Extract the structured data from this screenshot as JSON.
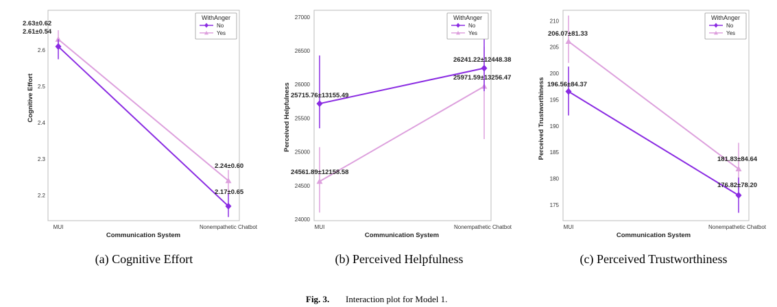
{
  "colors": {
    "no": "#8a2be2",
    "yes": "#dda0dd",
    "frame": "#bbbbbb"
  },
  "chart_data": [
    {
      "type": "line",
      "subcaption": "(a) Cognitive Effort",
      "xlabel": "Communication System",
      "ylabel": "Cognitive Effort",
      "categories": [
        "MUI",
        "Nonempathetic Chatbot"
      ],
      "ylim": [
        2.13,
        2.71
      ],
      "yticks": [
        2.2,
        2.3,
        2.4,
        2.5,
        2.6
      ],
      "ytick_labels": [
        "2.2",
        "2.3",
        "2.4",
        "2.5",
        "2.6"
      ],
      "legend": {
        "title": "WithAnger",
        "position": "top-right"
      },
      "series": [
        {
          "name": "No",
          "marker": "diamond",
          "values": [
            2.61,
            2.17
          ],
          "err_low": [
            2.575,
            2.14
          ],
          "err_high": [
            2.63,
            2.205
          ],
          "labels": [
            "2.61±0.54",
            "2.17±0.65"
          ]
        },
        {
          "name": "Yes",
          "marker": "triangle",
          "values": [
            2.63,
            2.24
          ],
          "err_low": [
            2.61,
            2.2
          ],
          "err_high": [
            2.655,
            2.27
          ],
          "labels": [
            "2.63±0.62",
            "2.24±0.60"
          ]
        }
      ]
    },
    {
      "type": "line",
      "subcaption": "(b) Perceived Helpfulness",
      "xlabel": "Communication System",
      "ylabel": "Perceived Helpfulness",
      "categories": [
        "MUI",
        "Nonempathetic Chatbot"
      ],
      "ylim": [
        23980,
        27100
      ],
      "yticks": [
        24000,
        24500,
        25000,
        25500,
        26000,
        26500,
        27000
      ],
      "ytick_labels": [
        "24000",
        "24500",
        "25000",
        "25500",
        "26000",
        "26500",
        "27000"
      ],
      "legend": {
        "title": "WithAnger",
        "position": "top-right"
      },
      "series": [
        {
          "name": "No",
          "marker": "diamond",
          "values": [
            25715.76,
            26241.22
          ],
          "err_low": [
            25350,
            25900
          ],
          "err_high": [
            26430,
            26870
          ],
          "labels": [
            "25715.76±13155.49",
            "26241.22±12448.38"
          ]
        },
        {
          "name": "Yes",
          "marker": "triangle",
          "values": [
            24561.89,
            25971.59
          ],
          "err_low": [
            24100,
            25190
          ],
          "err_high": [
            25070,
            26560
          ],
          "labels": [
            "24561.89±12158.58",
            "25971.59±13256.47"
          ]
        }
      ]
    },
    {
      "type": "line",
      "subcaption": "(c) Perceived Trustworthiness",
      "xlabel": "Communication System",
      "ylabel": "Perceived Trustworthiness",
      "categories": [
        "MUI",
        "Nonempathetic Chatbot"
      ],
      "ylim": [
        172,
        212
      ],
      "yticks": [
        175,
        180,
        185,
        190,
        195,
        200,
        205,
        210
      ],
      "ytick_labels": [
        "175",
        "180",
        "185",
        "190",
        "195",
        "200",
        "205",
        "210"
      ],
      "legend": {
        "title": "WithAnger",
        "position": "top-right"
      },
      "series": [
        {
          "name": "No",
          "marker": "diamond",
          "values": [
            196.56,
            176.82
          ],
          "err_low": [
            192,
            173.5
          ],
          "err_high": [
            201.3,
            180.2
          ],
          "labels": [
            "196.56±84.37",
            "176.82±78.20"
          ]
        },
        {
          "name": "Yes",
          "marker": "triangle",
          "values": [
            206.07,
            181.83
          ],
          "err_low": [
            202,
            177
          ],
          "err_high": [
            211,
            186.8
          ],
          "labels": [
            "206.07±81.33",
            "181.83±84.64"
          ]
        }
      ]
    }
  ],
  "caption": {
    "prefix": "Fig. 3.",
    "text": "Interaction plot for Model 1."
  }
}
